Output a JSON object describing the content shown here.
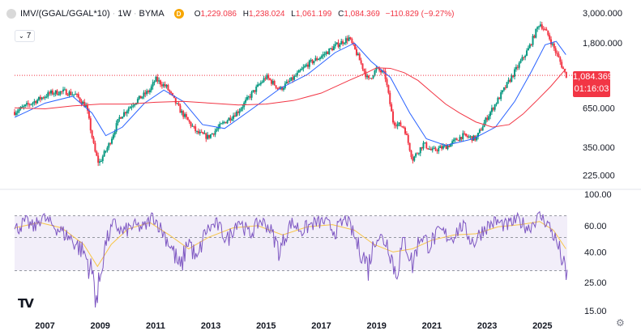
{
  "header": {
    "symbol": "IMV/(GGAL/GGAL*10)",
    "interval": "1W",
    "exchange": "BYMA",
    "delayed_badge": "D",
    "open_label": "O",
    "open": "1,229.086",
    "high_label": "H",
    "high": "1,238.024",
    "low_label": "L",
    "low": "1,061.199",
    "close_label": "C",
    "close": "1,084.369",
    "change": "−110.829 (−9.27%)",
    "indicator_count": "7"
  },
  "last_price": {
    "value": "1,084.369",
    "countdown": "01:16:03"
  },
  "logo_text": "TV",
  "colors": {
    "up": "#089981",
    "down": "#f23645",
    "ma_short": "#2962ff",
    "ma_long": "#f23645",
    "rsi": "#7e57c2",
    "rsi_ma": "#f7c548",
    "rsi_band": "#ede7f6"
  },
  "chart_data": [
    {
      "type": "candlestick",
      "scale": "log",
      "ylim": [
        190,
        3200
      ],
      "price_axis_ticks": [
        "3,000.000",
        "1,800.000",
        "650.000",
        "350.000",
        "225.000"
      ],
      "x_ticks": [
        "2007",
        "2009",
        "2011",
        "2013",
        "2015",
        "2017",
        "2019",
        "2021",
        "2023",
        "2025"
      ],
      "xlim": [
        2005.9,
        2025.9
      ],
      "price_path": [
        [
          2005.9,
          610
        ],
        [
          2006.5,
          700
        ],
        [
          2007.2,
          820
        ],
        [
          2007.7,
          840
        ],
        [
          2008.1,
          800
        ],
        [
          2008.5,
          660
        ],
        [
          2008.8,
          330
        ],
        [
          2008.95,
          270
        ],
        [
          2009.3,
          360
        ],
        [
          2009.7,
          560
        ],
        [
          2010.2,
          700
        ],
        [
          2010.8,
          860
        ],
        [
          2011.0,
          1020
        ],
        [
          2011.4,
          900
        ],
        [
          2011.9,
          620
        ],
        [
          2012.5,
          440
        ],
        [
          2012.9,
          410
        ],
        [
          2013.5,
          520
        ],
        [
          2014.0,
          620
        ],
        [
          2014.5,
          820
        ],
        [
          2015.0,
          1060
        ],
        [
          2015.5,
          870
        ],
        [
          2016.0,
          1040
        ],
        [
          2016.5,
          1290
        ],
        [
          2017.0,
          1460
        ],
        [
          2017.5,
          1720
        ],
        [
          2018.0,
          1950
        ],
        [
          2018.3,
          1500
        ],
        [
          2018.7,
          1000
        ],
        [
          2019.0,
          1200
        ],
        [
          2019.3,
          1100
        ],
        [
          2019.6,
          520
        ],
        [
          2020.0,
          480
        ],
        [
          2020.3,
          290
        ],
        [
          2020.7,
          370
        ],
        [
          2021.0,
          330
        ],
        [
          2021.6,
          360
        ],
        [
          2022.1,
          420
        ],
        [
          2022.6,
          400
        ],
        [
          2023.0,
          560
        ],
        [
          2023.5,
          800
        ],
        [
          2024.0,
          1150
        ],
        [
          2024.5,
          1650
        ],
        [
          2024.9,
          2480
        ],
        [
          2025.2,
          2050
        ],
        [
          2025.6,
          1400
        ],
        [
          2025.85,
          1084
        ]
      ],
      "series": [
        {
          "name": "",
          "kind": "moving-average-short",
          "points": [
            [
              2005.9,
              560
            ],
            [
              2007.0,
              700
            ],
            [
              2008.0,
              780
            ],
            [
              2008.7,
              600
            ],
            [
              2009.2,
              420
            ],
            [
              2009.8,
              480
            ],
            [
              2010.6,
              700
            ],
            [
              2011.3,
              860
            ],
            [
              2012.0,
              720
            ],
            [
              2012.7,
              500
            ],
            [
              2013.5,
              470
            ],
            [
              2014.5,
              640
            ],
            [
              2015.5,
              880
            ],
            [
              2016.5,
              1100
            ],
            [
              2017.5,
              1550
            ],
            [
              2018.2,
              1800
            ],
            [
              2018.8,
              1350
            ],
            [
              2019.5,
              1050
            ],
            [
              2020.2,
              600
            ],
            [
              2020.8,
              400
            ],
            [
              2021.5,
              360
            ],
            [
              2022.5,
              400
            ],
            [
              2023.3,
              480
            ],
            [
              2024.0,
              720
            ],
            [
              2024.6,
              1150
            ],
            [
              2025.1,
              1750
            ],
            [
              2025.5,
              1850
            ],
            [
              2025.85,
              1500
            ]
          ]
        },
        {
          "name": "",
          "kind": "moving-average-long",
          "points": [
            [
              2005.9,
              650
            ],
            [
              2007.0,
              640
            ],
            [
              2008.0,
              670
            ],
            [
              2009.0,
              690
            ],
            [
              2010.0,
              690
            ],
            [
              2011.0,
              710
            ],
            [
              2012.0,
              720
            ],
            [
              2013.0,
              700
            ],
            [
              2014.0,
              680
            ],
            [
              2015.0,
              690
            ],
            [
              2016.0,
              730
            ],
            [
              2017.0,
              820
            ],
            [
              2018.0,
              1000
            ],
            [
              2018.6,
              1120
            ],
            [
              2019.0,
              1220
            ],
            [
              2019.5,
              1210
            ],
            [
              2020.0,
              1130
            ],
            [
              2020.5,
              1000
            ],
            [
              2021.0,
              830
            ],
            [
              2021.5,
              690
            ],
            [
              2022.0,
              600
            ],
            [
              2022.6,
              520
            ],
            [
              2023.2,
              480
            ],
            [
              2023.8,
              500
            ],
            [
              2024.3,
              590
            ],
            [
              2024.8,
              730
            ],
            [
              2025.3,
              910
            ],
            [
              2025.85,
              1200
            ]
          ]
        }
      ]
    },
    {
      "type": "line",
      "name": "RSI",
      "ylim": [
        15,
        100
      ],
      "axis_ticks": [
        "100.00",
        "60.00",
        "40.00",
        "25.00",
        "15.00"
      ],
      "tick_values": [
        100,
        60,
        40,
        25,
        15
      ],
      "band": [
        30,
        70
      ],
      "midline": 50,
      "series": [
        {
          "name": "",
          "kind": "rsi",
          "points": [
            [
              2005.9,
              56
            ],
            [
              2006.3,
              64
            ],
            [
              2006.6,
              58
            ],
            [
              2006.9,
              69
            ],
            [
              2007.2,
              62
            ],
            [
              2007.6,
              55
            ],
            [
              2008.0,
              48
            ],
            [
              2008.4,
              40
            ],
            [
              2008.7,
              29
            ],
            [
              2008.9,
              19
            ],
            [
              2009.2,
              46
            ],
            [
              2009.5,
              62
            ],
            [
              2009.8,
              54
            ],
            [
              2010.2,
              60
            ],
            [
              2010.6,
              58
            ],
            [
              2010.9,
              70
            ],
            [
              2011.2,
              57
            ],
            [
              2011.6,
              42
            ],
            [
              2011.9,
              30
            ],
            [
              2012.2,
              49
            ],
            [
              2012.5,
              33
            ],
            [
              2012.8,
              55
            ],
            [
              2013.2,
              62
            ],
            [
              2013.6,
              48
            ],
            [
              2014.0,
              66
            ],
            [
              2014.4,
              52
            ],
            [
              2014.8,
              65
            ],
            [
              2015.1,
              59
            ],
            [
              2015.5,
              40
            ],
            [
              2015.9,
              63
            ],
            [
              2016.3,
              56
            ],
            [
              2016.7,
              62
            ],
            [
              2017.1,
              64
            ],
            [
              2017.5,
              55
            ],
            [
              2017.9,
              67
            ],
            [
              2018.3,
              45
            ],
            [
              2018.7,
              32
            ],
            [
              2019.0,
              52
            ],
            [
              2019.4,
              46
            ],
            [
              2019.7,
              28
            ],
            [
              2020.0,
              48
            ],
            [
              2020.3,
              33
            ],
            [
              2020.6,
              52
            ],
            [
              2020.9,
              45
            ],
            [
              2021.3,
              55
            ],
            [
              2021.7,
              50
            ],
            [
              2022.1,
              60
            ],
            [
              2022.5,
              46
            ],
            [
              2022.9,
              58
            ],
            [
              2023.3,
              64
            ],
            [
              2023.7,
              60
            ],
            [
              2024.1,
              66
            ],
            [
              2024.5,
              58
            ],
            [
              2024.9,
              70
            ],
            [
              2025.2,
              62
            ],
            [
              2025.5,
              47
            ],
            [
              2025.7,
              37
            ],
            [
              2025.85,
              26
            ]
          ]
        },
        {
          "name": "",
          "kind": "rsi-moving-average",
          "points": [
            [
              2005.9,
              58
            ],
            [
              2006.8,
              63
            ],
            [
              2007.6,
              58
            ],
            [
              2008.4,
              45
            ],
            [
              2008.9,
              32
            ],
            [
              2009.4,
              45
            ],
            [
              2010.0,
              57
            ],
            [
              2010.8,
              63
            ],
            [
              2011.5,
              52
            ],
            [
              2012.2,
              42
            ],
            [
              2012.9,
              50
            ],
            [
              2013.8,
              58
            ],
            [
              2014.7,
              60
            ],
            [
              2015.6,
              52
            ],
            [
              2016.5,
              59
            ],
            [
              2017.4,
              61
            ],
            [
              2018.2,
              56
            ],
            [
              2018.9,
              45
            ],
            [
              2019.6,
              40
            ],
            [
              2020.3,
              42
            ],
            [
              2021.0,
              48
            ],
            [
              2021.8,
              52
            ],
            [
              2022.6,
              53
            ],
            [
              2023.4,
              59
            ],
            [
              2024.2,
              61
            ],
            [
              2024.9,
              64
            ],
            [
              2025.4,
              56
            ],
            [
              2025.85,
              42
            ]
          ]
        }
      ]
    }
  ]
}
